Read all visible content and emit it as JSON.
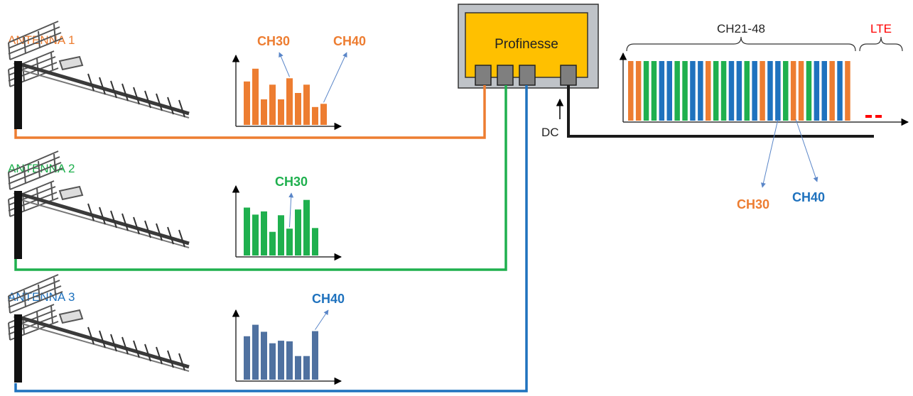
{
  "colors": {
    "orange": "#ED7D31",
    "green": "#1FB04E",
    "blue": "#1F72BE",
    "steel": "#4F71A0",
    "black": "#1a1a1a",
    "red": "#FF0000",
    "box_fill": "#FFC000",
    "box_frame": "#BFC3C8"
  },
  "antennas": [
    {
      "label": "ANTENNA 1",
      "color": "orange",
      "channels": [
        "CH30",
        "CH40"
      ],
      "bars": [
        6.8,
        8.8,
        4.0,
        6.3,
        4.0,
        7.3,
        5.0,
        6.3,
        2.8,
        3.3
      ]
    },
    {
      "label": "ANTENNA 2",
      "color": "green",
      "channels": [
        "CH30"
      ],
      "bars": [
        7.5,
        6.4,
        6.9,
        3.7,
        6.3,
        4.2,
        7.2,
        8.7,
        4.3
      ]
    },
    {
      "label": "ANTENNA 3",
      "color": "steel",
      "channels": [
        "CH40"
      ],
      "bars": [
        6.8,
        8.6,
        7.5,
        5.7,
        6.1,
        6.0,
        3.7,
        3.7,
        7.6
      ]
    }
  ],
  "device": {
    "name": "Profinesse",
    "ports": 4
  },
  "power_label": "DC",
  "spectrum": {
    "band_label": "CH21-48",
    "lte_label": "LTE",
    "bars": [
      "orange",
      "orange",
      "green",
      "green",
      "blue",
      "blue",
      "green",
      "green",
      "blue",
      "blue",
      "orange",
      "green",
      "green",
      "blue",
      "blue",
      "green",
      "blue",
      "orange",
      "blue",
      "blue",
      "green",
      "orange",
      "orange",
      "green",
      "blue",
      "blue",
      "orange",
      "blue",
      "orange"
    ],
    "callouts": [
      "CH30",
      "CH40"
    ]
  }
}
